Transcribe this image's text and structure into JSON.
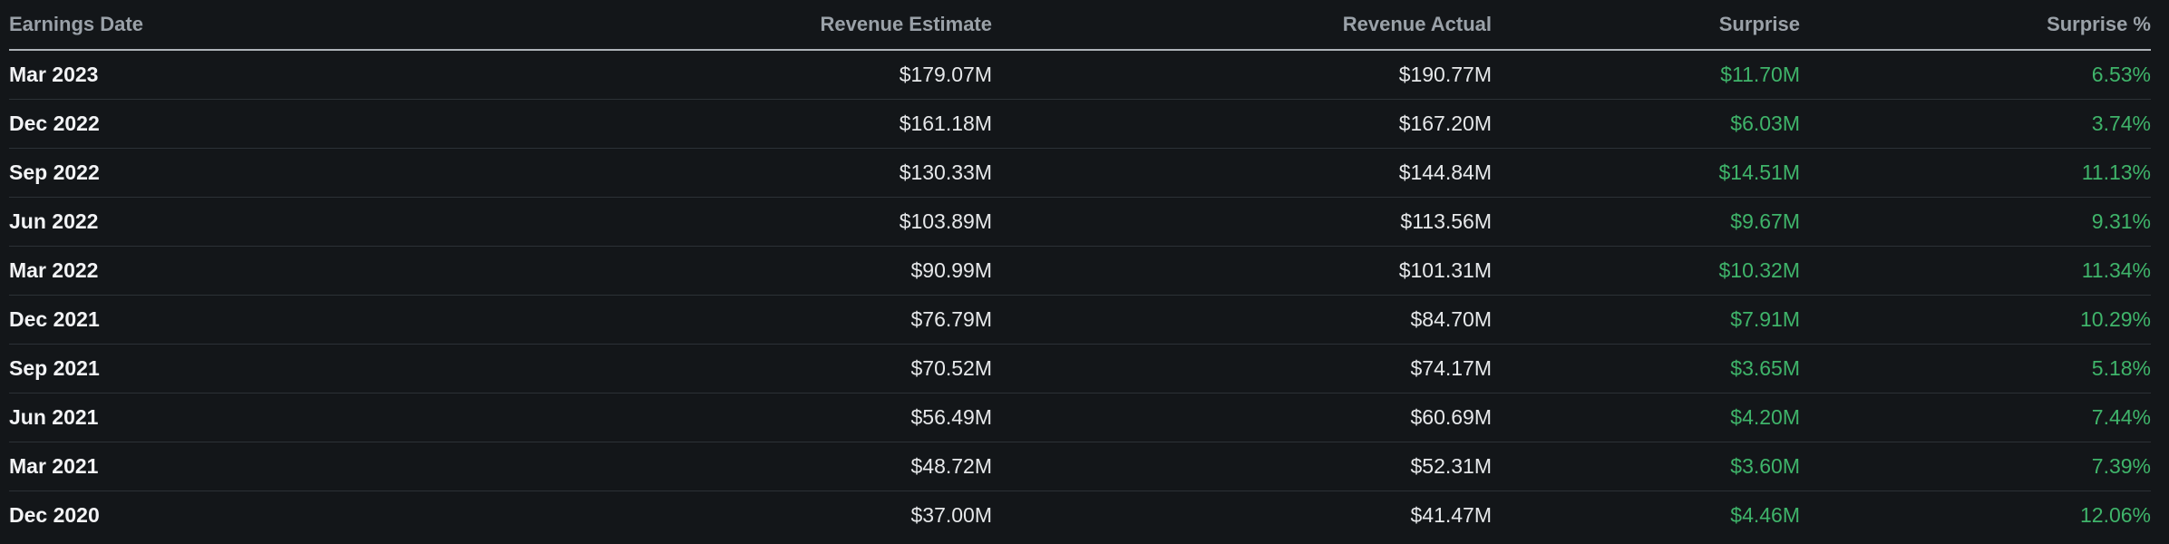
{
  "columns": {
    "date": "Earnings Date",
    "estimate": "Revenue Estimate",
    "actual": "Revenue Actual",
    "surprise": "Surprise",
    "surprise_pct": "Surprise %"
  },
  "colors": {
    "background": "#131619",
    "header_text": "#9aa1a8",
    "positive": "#3fb46a"
  },
  "rows": [
    {
      "date": "Mar 2023",
      "estimate": "$179.07M",
      "actual": "$190.77M",
      "surprise": "$11.70M",
      "surprise_pct": "6.53%"
    },
    {
      "date": "Dec 2022",
      "estimate": "$161.18M",
      "actual": "$167.20M",
      "surprise": "$6.03M",
      "surprise_pct": "3.74%"
    },
    {
      "date": "Sep 2022",
      "estimate": "$130.33M",
      "actual": "$144.84M",
      "surprise": "$14.51M",
      "surprise_pct": "11.13%"
    },
    {
      "date": "Jun 2022",
      "estimate": "$103.89M",
      "actual": "$113.56M",
      "surprise": "$9.67M",
      "surprise_pct": "9.31%"
    },
    {
      "date": "Mar 2022",
      "estimate": "$90.99M",
      "actual": "$101.31M",
      "surprise": "$10.32M",
      "surprise_pct": "11.34%"
    },
    {
      "date": "Dec 2021",
      "estimate": "$76.79M",
      "actual": "$84.70M",
      "surprise": "$7.91M",
      "surprise_pct": "10.29%"
    },
    {
      "date": "Sep 2021",
      "estimate": "$70.52M",
      "actual": "$74.17M",
      "surprise": "$3.65M",
      "surprise_pct": "5.18%"
    },
    {
      "date": "Jun 2021",
      "estimate": "$56.49M",
      "actual": "$60.69M",
      "surprise": "$4.20M",
      "surprise_pct": "7.44%"
    },
    {
      "date": "Mar 2021",
      "estimate": "$48.72M",
      "actual": "$52.31M",
      "surprise": "$3.60M",
      "surprise_pct": "7.39%"
    },
    {
      "date": "Dec 2020",
      "estimate": "$37.00M",
      "actual": "$41.47M",
      "surprise": "$4.46M",
      "surprise_pct": "12.06%"
    }
  ]
}
